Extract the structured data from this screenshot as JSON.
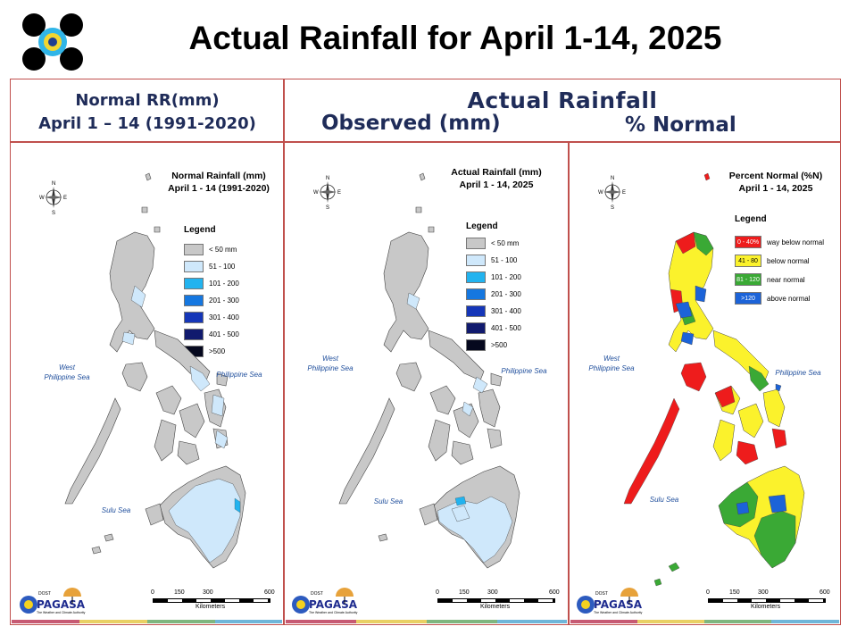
{
  "header": {
    "title": "Actual Rainfall for April 1-14, 2025"
  },
  "columns": {
    "normal_line1": "Normal RR(mm)",
    "normal_line2": "April 1 – 14 (1991-2020)",
    "actual": "Actual Rainfall",
    "observed": "Observed (mm)",
    "percent": "% Normal"
  },
  "panels": [
    {
      "title_line1": "Normal Rainfall (mm)",
      "title_line2": "April 1 - 14 (1991-2020)",
      "legend_title": "Legend",
      "legend": [
        {
          "label": "< 50 mm",
          "color": "#c8c8c8"
        },
        {
          "label": "51 - 100",
          "color": "#cfe8fb"
        },
        {
          "label": "101 - 200",
          "color": "#22b3ef"
        },
        {
          "label": "201 - 300",
          "color": "#1577e0"
        },
        {
          "label": "301 - 400",
          "color": "#1536b8"
        },
        {
          "label": "401 - 500",
          "color": "#111a6e"
        },
        {
          "label": ">500",
          "color": "#05081e"
        }
      ]
    },
    {
      "title_line1": "Actual Rainfall (mm)",
      "title_line2": "April 1 - 14, 2025",
      "legend_title": "Legend",
      "legend": [
        {
          "label": "< 50 mm",
          "color": "#c8c8c8"
        },
        {
          "label": "51 - 100",
          "color": "#cfe8fb"
        },
        {
          "label": "101 - 200",
          "color": "#22b3ef"
        },
        {
          "label": "201 - 300",
          "color": "#1577e0"
        },
        {
          "label": "301 - 400",
          "color": "#1536b8"
        },
        {
          "label": "401 - 500",
          "color": "#111a6e"
        },
        {
          "label": ">500",
          "color": "#05081e"
        }
      ]
    },
    {
      "title_line1": "Percent Normal (%N)",
      "title_line2": "April 1 - 14, 2025",
      "legend_title": "Legend",
      "legend": [
        {
          "swatch": "0 - 40%",
          "label": "way below normal",
          "color": "#ee1c1c"
        },
        {
          "swatch": "41 - 80",
          "label": "below normal",
          "color": "#fbf22c"
        },
        {
          "swatch": "81 - 120",
          "label": "near normal",
          "color": "#3aa935"
        },
        {
          "swatch": ">120",
          "label": "above normal",
          "color": "#1c63d8"
        }
      ]
    }
  ],
  "map_labels": {
    "west_sea_1": "West",
    "west_sea_2": "Philippine Sea",
    "ph_sea": "Philippine Sea",
    "sulu_sea": "Sulu Sea",
    "north": "N",
    "south": "S",
    "east": "E",
    "west": "W"
  },
  "scale": {
    "ticks": [
      "0",
      "150",
      "300",
      "600"
    ],
    "unit": "Kilometers"
  },
  "logo": {
    "small": "DOST",
    "name": "PAGASA",
    "tagline": "The Weather and Climate Authority"
  },
  "colors": {
    "frame": "#c0504d",
    "header_text": "#1f2c59",
    "land_gray": "#c8c8c8",
    "land_light": "#cfe8fb",
    "red": "#ee1c1c",
    "yellow": "#fbf22c",
    "green": "#3aa935",
    "blue": "#1c63d8"
  }
}
